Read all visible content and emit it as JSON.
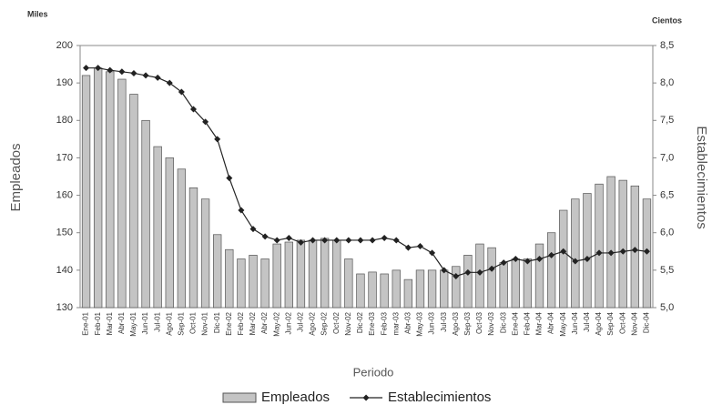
{
  "chart_data": {
    "type": "bar_line",
    "y_unit": "Miles",
    "y2_unit": "Cientos",
    "ylabel": "Empleados",
    "y2label": "Establecimientos",
    "xlabel": "Periodo",
    "categories": [
      "Ene-01",
      "Feb-01",
      "Mar-01",
      "Abr-01",
      "May-01",
      "Jun-01",
      "Jul-01",
      "Ago-01",
      "Sep-01",
      "Oct-01",
      "Nov-01",
      "Dic-01",
      "Ene-02",
      "Feb-02",
      "Mar-02",
      "Abr-02",
      "May-02",
      "Jun-02",
      "Jul-02",
      "Ago-02",
      "Sep-02",
      "Oct-02",
      "Nov-02",
      "Dic-02",
      "Ene-03",
      "Feb-03",
      "mar-03",
      "Abr-03",
      "May-03",
      "Jun-03",
      "Jul-03",
      "Ago-03",
      "Sep-03",
      "Oct-03",
      "Nov-03",
      "Dic-03",
      "Ene-04",
      "Feb-04",
      "Mar-04",
      "Abr-04",
      "May-04",
      "Jun-04",
      "Jul-04",
      "Ago-04",
      "Sep-04",
      "Oct-04",
      "Nov-04",
      "Dic-04"
    ],
    "series": [
      {
        "name": "Empleados",
        "type": "bar",
        "axis": "y",
        "color": "#c4c4c4",
        "values": [
          192,
          194,
          193,
          191,
          187,
          180,
          173,
          170,
          167,
          162,
          159,
          149.5,
          145.5,
          143,
          144,
          143,
          147,
          147.5,
          148,
          148,
          148.5,
          148,
          143,
          139,
          139.5,
          139,
          140,
          137.5,
          140,
          140,
          140,
          141,
          144,
          147,
          146,
          142,
          143,
          143,
          147,
          150,
          156,
          159,
          160.5,
          163,
          165,
          164,
          162.5,
          159
        ]
      },
      {
        "name": "Establecimientos",
        "type": "line",
        "axis": "y2",
        "color": "#222222",
        "values": [
          8.2,
          8.2,
          8.17,
          8.15,
          8.13,
          8.1,
          8.07,
          8.0,
          7.88,
          7.65,
          7.48,
          7.25,
          6.73,
          6.3,
          6.05,
          5.95,
          5.9,
          5.93,
          5.87,
          5.9,
          5.9,
          5.9,
          5.9,
          5.9,
          5.9,
          5.93,
          5.9,
          5.8,
          5.82,
          5.73,
          5.5,
          5.42,
          5.47,
          5.47,
          5.52,
          5.6,
          5.65,
          5.62,
          5.65,
          5.7,
          5.75,
          5.62,
          5.65,
          5.73,
          5.73,
          5.75,
          5.77,
          5.75
        ]
      }
    ],
    "ylim": [
      130,
      200
    ],
    "yticks": [
      130,
      140,
      150,
      160,
      170,
      180,
      190,
      200
    ],
    "y2lim": [
      5,
      8.5
    ],
    "y2ticks": [
      {
        "value": 5,
        "label": "5,0"
      },
      {
        "value": 5.5,
        "label": "5,5"
      },
      {
        "value": 6,
        "label": "6,0"
      },
      {
        "value": 6.5,
        "label": "6,5"
      },
      {
        "value": 7,
        "label": "7,0"
      },
      {
        "value": 7.5,
        "label": "7,5"
      },
      {
        "value": 8,
        "label": "8,0"
      },
      {
        "value": 8.5,
        "label": "8,5"
      }
    ],
    "grid": false,
    "legend": "bottom"
  }
}
